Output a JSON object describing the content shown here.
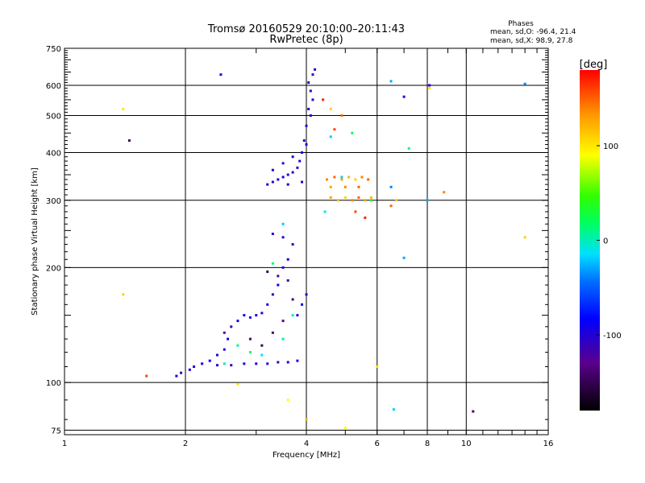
{
  "chart_data": {
    "type": "scatter",
    "title": "Tromsø 20160529 20:10:00–20:11:43",
    "subtitle": "RwPretec (8p)",
    "xlabel": "Frequency [MHz]",
    "ylabel": "Stationary phase Virtual Height [km]",
    "x_scale": "log",
    "y_scale": "log",
    "xlim": [
      1,
      16
    ],
    "ylim": [
      73,
      750
    ],
    "x_ticks": [
      "1",
      "2",
      "4",
      "6",
      "8",
      "10",
      "16"
    ],
    "x_tick_values": [
      1,
      2,
      4,
      6,
      8,
      10,
      16
    ],
    "y_ticks": [
      "75",
      "100",
      "200",
      "300",
      "400",
      "500",
      "600",
      "750"
    ],
    "y_tick_values": [
      75,
      100,
      200,
      300,
      400,
      500,
      600,
      750
    ],
    "grid": true,
    "stats": {
      "heading": "Phases",
      "line1": "mean, sd,O: -96.4, 21.4",
      "line2": "mean, sd,X: 98.9, 27.8"
    },
    "colorbar": {
      "label": "[deg]",
      "range": [
        -180,
        180
      ],
      "ticks": [
        "100",
        "0",
        "-100"
      ],
      "tick_values": [
        100,
        0,
        -100
      ]
    },
    "series": [
      {
        "points": [
          [
            1.9,
            104,
            -100
          ],
          [
            1.95,
            106,
            -110
          ],
          [
            2.05,
            108,
            -95
          ],
          [
            2.1,
            110,
            -105
          ],
          [
            2.2,
            112,
            -100
          ],
          [
            2.3,
            114,
            -90
          ],
          [
            2.4,
            118,
            -105
          ],
          [
            2.5,
            122,
            -100
          ],
          [
            2.55,
            130,
            -95
          ],
          [
            2.6,
            140,
            -110
          ],
          [
            2.7,
            145,
            -100
          ],
          [
            2.8,
            150,
            -95
          ],
          [
            2.9,
            148,
            -80
          ],
          [
            3.0,
            150,
            -100
          ],
          [
            3.1,
            152,
            -110
          ],
          [
            3.2,
            160,
            -100
          ],
          [
            3.3,
            170,
            -105
          ],
          [
            3.4,
            180,
            -90
          ],
          [
            3.5,
            200,
            -100
          ],
          [
            3.6,
            210,
            -95
          ],
          [
            3.7,
            230,
            -110
          ],
          [
            3.5,
            240,
            -100
          ],
          [
            3.3,
            245,
            -105
          ],
          [
            3.8,
            150,
            -100
          ],
          [
            3.9,
            160,
            -95
          ],
          [
            4.0,
            170,
            -100
          ],
          [
            3.0,
            112,
            -100
          ],
          [
            3.2,
            112,
            -105
          ],
          [
            3.4,
            113,
            -110
          ],
          [
            3.6,
            113,
            -100
          ],
          [
            3.8,
            114,
            -95
          ],
          [
            2.8,
            112,
            -100
          ],
          [
            2.6,
            111,
            -105
          ],
          [
            2.4,
            111,
            -100
          ],
          [
            2.5,
            135,
            -130
          ],
          [
            2.9,
            130,
            -140
          ],
          [
            3.1,
            125,
            -150
          ],
          [
            3.3,
            135,
            -140
          ],
          [
            3.5,
            145,
            -130
          ],
          [
            3.7,
            165,
            -140
          ],
          [
            3.2,
            195,
            -150
          ],
          [
            3.4,
            190,
            -130
          ],
          [
            3.6,
            185,
            -120
          ],
          [
            3.2,
            330,
            -100
          ],
          [
            3.3,
            335,
            -105
          ],
          [
            3.4,
            340,
            -100
          ],
          [
            3.5,
            345,
            -95
          ],
          [
            3.6,
            350,
            -110
          ],
          [
            3.7,
            355,
            -100
          ],
          [
            3.8,
            365,
            -105
          ],
          [
            3.85,
            380,
            -100
          ],
          [
            3.9,
            400,
            -95
          ],
          [
            3.95,
            430,
            -100
          ],
          [
            4.0,
            470,
            -105
          ],
          [
            4.05,
            520,
            -100
          ],
          [
            4.1,
            580,
            -110
          ],
          [
            4.15,
            640,
            -100
          ],
          [
            4.2,
            660,
            -105
          ],
          [
            3.3,
            360,
            -100
          ],
          [
            3.5,
            375,
            -110
          ],
          [
            3.7,
            390,
            -100
          ],
          [
            4.0,
            420,
            -95
          ],
          [
            4.1,
            500,
            -100
          ],
          [
            4.15,
            550,
            -105
          ],
          [
            4.05,
            610,
            -110
          ],
          [
            3.6,
            330,
            -100
          ],
          [
            3.9,
            335,
            -105
          ],
          [
            2.45,
            640,
            -100
          ],
          [
            1.45,
            430,
            -150
          ],
          [
            10.4,
            84,
            -140
          ],
          [
            8.1,
            600,
            -95
          ],
          [
            7.0,
            560,
            -100
          ]
        ]
      },
      {
        "points": [
          [
            4.5,
            340,
            140
          ],
          [
            4.7,
            345,
            150
          ],
          [
            4.9,
            340,
            130
          ],
          [
            5.1,
            345,
            120
          ],
          [
            5.3,
            340,
            110
          ],
          [
            5.5,
            345,
            140
          ],
          [
            5.7,
            340,
            150
          ],
          [
            4.6,
            305,
            130
          ],
          [
            4.8,
            300,
            120
          ],
          [
            5.0,
            305,
            110
          ],
          [
            5.2,
            300,
            140
          ],
          [
            5.4,
            305,
            150
          ],
          [
            5.6,
            300,
            130
          ],
          [
            5.8,
            305,
            120
          ],
          [
            4.6,
            325,
            130
          ],
          [
            5.0,
            325,
            140
          ],
          [
            5.4,
            325,
            150
          ],
          [
            5.6,
            270,
            170
          ],
          [
            5.3,
            280,
            160
          ],
          [
            4.9,
            500,
            150
          ],
          [
            4.7,
            460,
            160
          ],
          [
            4.4,
            550,
            170
          ],
          [
            4.6,
            520,
            110
          ],
          [
            5.8,
            300,
            20
          ],
          [
            6.0,
            110,
            100
          ],
          [
            6.5,
            290,
            150
          ],
          [
            6.7,
            300,
            110
          ],
          [
            8.8,
            315,
            140
          ],
          [
            8.1,
            590,
            100
          ],
          [
            1.4,
            520,
            100
          ],
          [
            1.4,
            170,
            110
          ],
          [
            1.6,
            104,
            160
          ],
          [
            14.0,
            240,
            110
          ],
          [
            4.0,
            80,
            120
          ],
          [
            5.0,
            76,
            90
          ],
          [
            3.6,
            90,
            90
          ],
          [
            2.7,
            99,
            100
          ]
        ]
      },
      {
        "points": [
          [
            2.7,
            125,
            0
          ],
          [
            2.9,
            120,
            10
          ],
          [
            3.1,
            118,
            -10
          ],
          [
            3.5,
            130,
            5
          ],
          [
            3.7,
            150,
            -5
          ],
          [
            2.5,
            112,
            0
          ],
          [
            3.3,
            205,
            10
          ],
          [
            3.5,
            260,
            -20
          ],
          [
            4.45,
            280,
            -10
          ],
          [
            4.6,
            440,
            -20
          ],
          [
            5.2,
            450,
            20
          ],
          [
            6.6,
            85,
            -20
          ],
          [
            7.0,
            212,
            -30
          ],
          [
            7.2,
            410,
            10
          ],
          [
            6.5,
            325,
            -40
          ],
          [
            8.0,
            300,
            -30
          ],
          [
            6.5,
            615,
            -30
          ],
          [
            14.0,
            605,
            -40
          ],
          [
            4.9,
            345,
            -20
          ]
        ]
      }
    ]
  }
}
